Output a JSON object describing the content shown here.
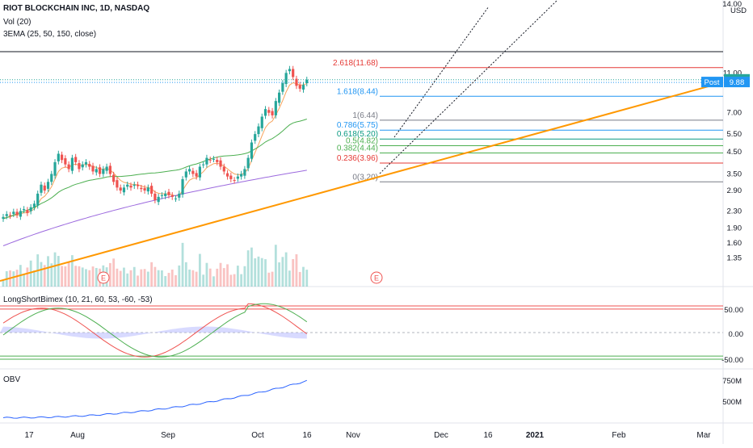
{
  "legend": {
    "symbol": "RIOT BLOCKCHAIN INC, 1D, NASDAQ",
    "volume": "Vol (20)",
    "ema": "3EMA (25, 50, 150, close)",
    "osc": "LongShortBimex (10, 21, 60, 53, -60, -53)",
    "obv": "OBV"
  },
  "colors": {
    "up": "#26a69a",
    "down": "#ef5350",
    "fib_red": "#e53935",
    "fib_blue": "#2196f3",
    "fib_green": "#4caf50",
    "fib_grey": "#787b86",
    "fib_teal": "#089981",
    "trendline": "#ff9800",
    "ema25": "#f7a35c",
    "ema50": "#4caf50",
    "ema150": "#9c6ade",
    "obv": "#2962ff",
    "osc_fill": "#b2b5ff"
  },
  "chart_data": {
    "type": "candlestick",
    "price_scale": "log",
    "currency": "USD",
    "y_ticks": [
      "14.00",
      "11.00",
      "7.00",
      "5.50",
      "4.50",
      "3.50",
      "2.90",
      "2.30",
      "1.90",
      "1.60",
      "1.35"
    ],
    "x_ticks": [
      "17",
      "Aug",
      "Sep",
      "Oct",
      "16",
      "Nov",
      "Dec",
      "16",
      "2021",
      "Feb",
      "Mar"
    ],
    "last_price": "10.18",
    "post_label": "Post",
    "post_price": "9.88",
    "fib_levels": [
      {
        "label": "2.618(11.68)",
        "price": 11.68,
        "color": "red"
      },
      {
        "label": "1.618(8.44)",
        "price": 8.44,
        "color": "blue"
      },
      {
        "label": "1(6.44)",
        "price": 6.44,
        "color": "grey"
      },
      {
        "label": "0.786(5.75)",
        "price": 5.75,
        "color": "blue"
      },
      {
        "label": "0.618(5.20)",
        "price": 5.2,
        "color": "teal"
      },
      {
        "label": "0.5(4.82)",
        "price": 4.82,
        "color": "green"
      },
      {
        "label": "0.382(4.44)",
        "price": 4.44,
        "color": "green"
      },
      {
        "label": "0.236(3.96)",
        "price": 3.96,
        "color": "red"
      },
      {
        "label": "0(3.20)",
        "price": 3.2,
        "color": "grey"
      }
    ],
    "closes": [
      2.15,
      2.22,
      2.18,
      2.28,
      2.2,
      2.3,
      2.35,
      2.25,
      2.4,
      2.5,
      2.8,
      3.1,
      2.9,
      3.2,
      3.5,
      4.0,
      4.4,
      4.1,
      3.9,
      3.7,
      4.2,
      4.0,
      3.7,
      3.9,
      4.0,
      3.8,
      3.6,
      3.7,
      3.5,
      3.7,
      3.8,
      3.5,
      3.2,
      3.0,
      2.9,
      3.0,
      3.1,
      3.0,
      3.1,
      3.05,
      2.95,
      2.9,
      3.0,
      2.8,
      2.6,
      2.7,
      2.75,
      2.8,
      2.75,
      2.7,
      2.65,
      2.8,
      3.3,
      3.6,
      3.7,
      3.5,
      3.4,
      3.8,
      3.9,
      4.2,
      4.1,
      4.15,
      4.0,
      3.8,
      3.6,
      3.4,
      3.3,
      3.25,
      3.4,
      3.5,
      3.7,
      4.2,
      5.0,
      5.5,
      6.0,
      6.7,
      7.3,
      7.0,
      6.8,
      8.0,
      8.8,
      9.8,
      11.0,
      11.5,
      10.5,
      9.5,
      9.2,
      9.6,
      10.18
    ],
    "ema_series": [
      {
        "name": "EMA 25",
        "first": 2.1,
        "last": 7.4
      },
      {
        "name": "EMA 50",
        "first": 2.1,
        "last": 5.45
      },
      {
        "name": "EMA 150",
        "first": 1.55,
        "last": 3.65
      }
    ],
    "volume_ticks": [],
    "osc_ticks": [
      "50.00",
      "0.00",
      "-50.00"
    ],
    "osc_levels": [
      60,
      53,
      -53,
      -60
    ],
    "obv_ticks": [
      "750M",
      "500M"
    ],
    "obv_first": 440,
    "obv_last": 790,
    "earnings_markers": [
      "E",
      "E"
    ]
  }
}
